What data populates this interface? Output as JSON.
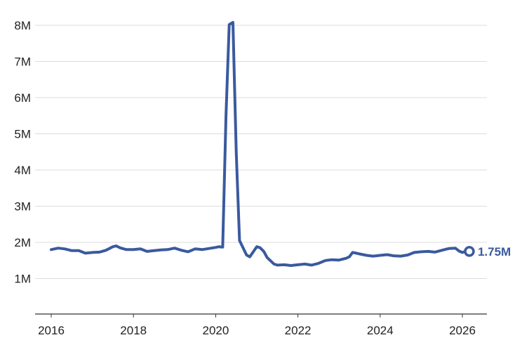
{
  "chart_data": {
    "type": "line",
    "title": "",
    "xlabel": "",
    "ylabel": "",
    "x_ticks": [
      "2016",
      "2018",
      "2020",
      "2022",
      "2024",
      "2026"
    ],
    "y_ticks": [
      "1M",
      "2M",
      "3M",
      "4M",
      "5M",
      "6M",
      "7M",
      "8M"
    ],
    "xlim": [
      2016,
      2026.3
    ],
    "ylim": [
      0,
      8.2
    ],
    "grid": true,
    "series": [
      {
        "color": "#3a5a9e",
        "end_label": "1.75M",
        "points": [
          [
            2016.0,
            1.8
          ],
          [
            2016.17,
            1.84
          ],
          [
            2016.33,
            1.82
          ],
          [
            2016.5,
            1.77
          ],
          [
            2016.67,
            1.77
          ],
          [
            2016.83,
            1.7
          ],
          [
            2017.0,
            1.72
          ],
          [
            2017.17,
            1.73
          ],
          [
            2017.33,
            1.78
          ],
          [
            2017.5,
            1.88
          ],
          [
            2017.58,
            1.9
          ],
          [
            2017.67,
            1.85
          ],
          [
            2017.83,
            1.8
          ],
          [
            2018.0,
            1.8
          ],
          [
            2018.17,
            1.82
          ],
          [
            2018.33,
            1.75
          ],
          [
            2018.5,
            1.77
          ],
          [
            2018.67,
            1.79
          ],
          [
            2018.83,
            1.8
          ],
          [
            2019.0,
            1.84
          ],
          [
            2019.17,
            1.78
          ],
          [
            2019.33,
            1.74
          ],
          [
            2019.5,
            1.82
          ],
          [
            2019.67,
            1.8
          ],
          [
            2019.83,
            1.83
          ],
          [
            2020.0,
            1.86
          ],
          [
            2020.08,
            1.88
          ],
          [
            2020.17,
            1.87
          ],
          [
            2020.25,
            5.5
          ],
          [
            2020.33,
            8.02
          ],
          [
            2020.42,
            8.08
          ],
          [
            2020.5,
            4.5
          ],
          [
            2020.58,
            2.05
          ],
          [
            2020.75,
            1.65
          ],
          [
            2020.83,
            1.6
          ],
          [
            2021.0,
            1.88
          ],
          [
            2021.08,
            1.85
          ],
          [
            2021.17,
            1.75
          ],
          [
            2021.25,
            1.58
          ],
          [
            2021.42,
            1.4
          ],
          [
            2021.5,
            1.37
          ],
          [
            2021.67,
            1.38
          ],
          [
            2021.83,
            1.36
          ],
          [
            2022.0,
            1.38
          ],
          [
            2022.17,
            1.4
          ],
          [
            2022.33,
            1.37
          ],
          [
            2022.5,
            1.42
          ],
          [
            2022.67,
            1.5
          ],
          [
            2022.83,
            1.52
          ],
          [
            2023.0,
            1.51
          ],
          [
            2023.17,
            1.56
          ],
          [
            2023.25,
            1.6
          ],
          [
            2023.33,
            1.72
          ],
          [
            2023.42,
            1.7
          ],
          [
            2023.5,
            1.68
          ],
          [
            2023.67,
            1.64
          ],
          [
            2023.83,
            1.62
          ],
          [
            2024.0,
            1.64
          ],
          [
            2024.17,
            1.66
          ],
          [
            2024.33,
            1.63
          ],
          [
            2024.5,
            1.62
          ],
          [
            2024.67,
            1.65
          ],
          [
            2024.83,
            1.72
          ],
          [
            2025.0,
            1.74
          ],
          [
            2025.17,
            1.75
          ],
          [
            2025.33,
            1.73
          ],
          [
            2025.5,
            1.78
          ],
          [
            2025.67,
            1.83
          ],
          [
            2025.83,
            1.84
          ],
          [
            2025.92,
            1.76
          ],
          [
            2026.0,
            1.72
          ],
          [
            2026.08,
            1.75
          ],
          [
            2026.17,
            1.75
          ]
        ]
      }
    ]
  }
}
